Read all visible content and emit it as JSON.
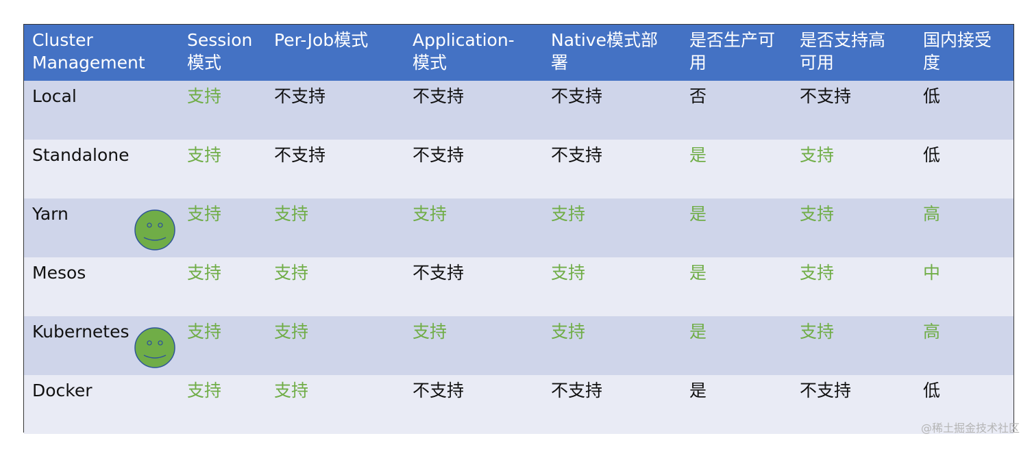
{
  "headers": [
    "Cluster\nManagement",
    "Session\n模式",
    "Per-Job模式",
    "Application-\n模式",
    "Native模式部\n署",
    "是否生产可\n用",
    "是否支持高\n可用",
    "国内接受\n度"
  ],
  "rows": [
    {
      "cells": [
        "Local",
        "支持",
        "不支持",
        "不支持",
        "不支持",
        "否",
        "不支持",
        "低"
      ],
      "green": [
        1
      ],
      "smiley": false
    },
    {
      "cells": [
        "Standalone",
        "支持",
        "不支持",
        "不支持",
        "不支持",
        "是",
        "支持",
        "低"
      ],
      "green": [
        1,
        5,
        6
      ],
      "smiley": false
    },
    {
      "cells": [
        "Yarn",
        "支持",
        "支持",
        "支持",
        "支持",
        "是",
        "支持",
        "高"
      ],
      "green": [
        1,
        2,
        3,
        4,
        5,
        6,
        7
      ],
      "smiley": true
    },
    {
      "cells": [
        "Mesos",
        "支持",
        "支持",
        "不支持",
        "支持",
        "是",
        "支持",
        "中"
      ],
      "green": [
        1,
        2,
        4,
        5,
        6,
        7
      ],
      "smiley": false
    },
    {
      "cells": [
        "Kubernetes",
        "支持",
        "支持",
        "支持",
        "支持",
        "是",
        "支持",
        "高"
      ],
      "green": [
        1,
        2,
        3,
        4,
        5,
        6,
        7
      ],
      "smiley": true
    },
    {
      "cells": [
        "Docker",
        "支持",
        "支持",
        "不支持",
        "不支持",
        "是",
        "不支持",
        "低"
      ],
      "green": [
        1,
        2
      ],
      "smiley": false
    }
  ],
  "colors": {
    "header": "#4472c4",
    "row_odd": "#cfd5ea",
    "row_even": "#e9ebf5",
    "supported": "#70ad47",
    "smiley": "#70ad47"
  },
  "icons": {
    "smiley": "smiley-face-icon"
  },
  "watermark": "@稀土掘金技术社区"
}
